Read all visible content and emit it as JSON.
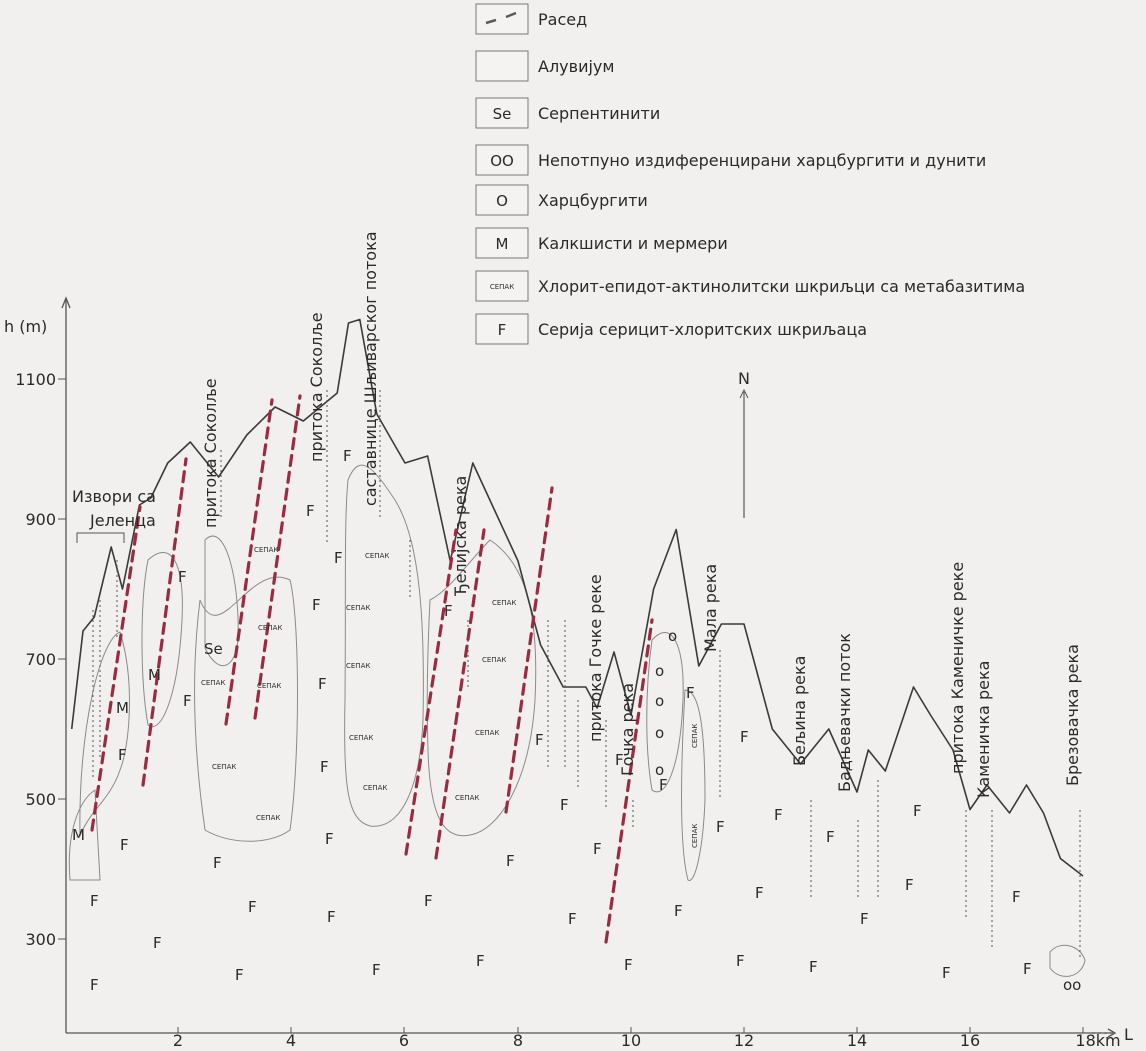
{
  "legend": [
    {
      "key": "fault",
      "symbol": "",
      "text": "Расед"
    },
    {
      "key": "alluvium",
      "symbol": "",
      "text": "Алувијум"
    },
    {
      "key": "serpentinite",
      "symbol": "Se",
      "text": "Серпентинити"
    },
    {
      "key": "harzdun",
      "symbol": "OO",
      "text": "Непотпуно издиференцирани харцбургити и дунити"
    },
    {
      "key": "harzburgite",
      "symbol": "O",
      "text": "Харцбургити"
    },
    {
      "key": "marble",
      "symbol": "M",
      "text": "Калкшисти и мермери"
    },
    {
      "key": "chlorite",
      "symbol": "СЕПАК",
      "text": "Хлорит-епидот-актинолитски шкриљци са метабазитима"
    },
    {
      "key": "sericite",
      "symbol": "F",
      "text": "Серија серицит-хлоритских шкриљаца"
    }
  ],
  "axes": {
    "y_title": "h (m)",
    "x_unit_title": "L",
    "y_ticks": [
      "1100",
      "900",
      "700",
      "500",
      "300"
    ],
    "x_ticks": [
      "2",
      "4",
      "6",
      "8",
      "10",
      "12",
      "14",
      "16",
      "18km"
    ]
  },
  "north": "N",
  "topo_labels": [
    "Извори са",
    "Јеленца",
    "притока Соколље",
    "притока Соколље",
    "саставнице Шљиварског потока",
    "Ђелијска река",
    "притока Гочке реке",
    "Гочка река",
    "Мала река",
    "Бељина река",
    "Бадњевачки поток",
    "притока Каменичке реке",
    "Каменичка река",
    "Брезовачка река"
  ],
  "unit_symbols": {
    "F": "F",
    "M": "M",
    "Se": "Se",
    "O": "o",
    "OO": "oo",
    "SEPAK": "СЕПАК"
  },
  "profile": {
    "x_km": [
      0.1,
      0.3,
      0.5,
      0.8,
      1.0,
      1.3,
      1.5,
      1.8,
      2.2,
      2.7,
      3.2,
      3.7,
      4.2,
      4.5,
      4.8,
      5.0,
      5.2,
      5.5,
      6.0,
      6.4,
      6.8,
      7.2,
      7.6,
      8.0,
      8.4,
      8.8,
      9.2,
      9.4,
      9.7,
      10.0,
      10.4,
      10.8,
      11.2,
      11.6,
      12.0,
      12.5,
      13.0,
      13.5,
      14.0,
      14.2,
      14.5,
      15.0,
      15.3,
      15.7,
      16.0,
      16.3,
      16.7,
      17.0,
      17.3,
      17.6,
      18.0
    ],
    "h_m": [
      500,
      640,
      660,
      760,
      700,
      820,
      830,
      880,
      910,
      860,
      920,
      960,
      940,
      960,
      980,
      1080,
      1085,
      950,
      880,
      890,
      740,
      880,
      810,
      740,
      620,
      560,
      560,
      530,
      610,
      520,
      700,
      785,
      590,
      650,
      650,
      500,
      450,
      500,
      410,
      470,
      440,
      560,
      520,
      470,
      385,
      420,
      380,
      420,
      380,
      315,
      290
    ],
    "range_km": [
      0,
      18.4
    ],
    "range_m": [
      200,
      1200
    ]
  }
}
